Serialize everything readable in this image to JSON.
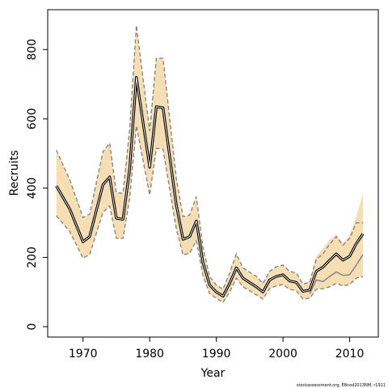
{
  "chart_data": {
    "type": "line",
    "xlabel": "Year",
    "ylabel": "Recruits",
    "footnote": "stockassessment.org, EBcod2013NM, r1911",
    "xlim": [
      1964.7,
      2014.3
    ],
    "ylim": [
      -30,
      915
    ],
    "x_ticks": [
      1970,
      1980,
      1990,
      2000,
      2010
    ],
    "y_ticks": [
      0,
      200,
      400,
      600,
      800
    ],
    "grid": false,
    "legend": "none",
    "colors": {
      "band_fill": "#f5deb3",
      "estimate": "#000000",
      "band_bounds": "#808080",
      "alt_estimate": "#808080"
    },
    "series": [
      {
        "role": "estimate",
        "x": [
          1966,
          1968,
          1970,
          1971,
          1973,
          1974,
          1975,
          1976,
          1977,
          1978,
          1980,
          1981,
          1982,
          1984,
          1985,
          1986,
          1987,
          1988,
          1989,
          1990,
          1991,
          1992,
          1993,
          1994,
          1996,
          1997,
          1998,
          1999,
          2000,
          2001,
          2002,
          2003,
          2004,
          2005,
          2006,
          2007,
          2008,
          2009,
          2010,
          2011,
          2012
        ],
        "y": [
          406,
          340,
          245,
          260,
          410,
          432,
          313,
          310,
          455,
          720,
          460,
          635,
          632,
          352,
          252,
          260,
          305,
          185,
          120,
          100,
          88,
          125,
          170,
          140,
          115,
          100,
          135,
          145,
          150,
          132,
          128,
          102,
          106,
          160,
          172,
          192,
          210,
          192,
          203,
          240,
          268
        ]
      },
      {
        "role": "upper-bound",
        "x": [
          1966,
          1968,
          1970,
          1971,
          1973,
          1974,
          1975,
          1976,
          1977,
          1978,
          1980,
          1981,
          1982,
          1984,
          1985,
          1986,
          1987,
          1988,
          1989,
          1990,
          1991,
          1992,
          1993,
          1994,
          1996,
          1997,
          1998,
          1999,
          2000,
          2001,
          2002,
          2003,
          2004,
          2005,
          2006,
          2007,
          2008,
          2009,
          2010,
          2011,
          2012
        ],
        "y": [
          510,
          425,
          315,
          325,
          505,
          530,
          387,
          385,
          570,
          870,
          565,
          775,
          775,
          428,
          318,
          322,
          375,
          228,
          145,
          120,
          108,
          155,
          210,
          170,
          145,
          125,
          160,
          173,
          178,
          160,
          155,
          123,
          128,
          195,
          210,
          238,
          260,
          235,
          255,
          300,
          300
        ]
      },
      {
        "role": "lower-bound",
        "x": [
          1966,
          1968,
          1970,
          1971,
          1973,
          1974,
          1975,
          1976,
          1977,
          1978,
          1980,
          1981,
          1982,
          1984,
          1985,
          1986,
          1987,
          1988,
          1989,
          1990,
          1991,
          1992,
          1993,
          1994,
          1996,
          1997,
          1998,
          1999,
          2000,
          2001,
          2002,
          2003,
          2004,
          2005,
          2006,
          2007,
          2008,
          2009,
          2010,
          2011,
          2012
        ],
        "y": [
          320,
          275,
          198,
          208,
          330,
          348,
          255,
          255,
          370,
          580,
          380,
          515,
          512,
          283,
          207,
          212,
          248,
          148,
          95,
          82,
          70,
          100,
          140,
          115,
          92,
          80,
          110,
          118,
          122,
          108,
          104,
          80,
          82,
          108,
          110,
          115,
          125,
          118,
          122,
          140,
          145
        ]
      },
      {
        "role": "alt-estimate",
        "x": [
          2004,
          2005,
          2006,
          2007,
          2008,
          2009,
          2010,
          2011,
          2012
        ],
        "y": [
          95,
          135,
          130,
          145,
          158,
          148,
          150,
          178,
          208
        ]
      },
      {
        "role": "band-upper",
        "x": [
          2004,
          2005,
          2006,
          2007,
          2008,
          2009,
          2010,
          2011,
          2012
        ],
        "y": [
          132,
          205,
          225,
          252,
          265,
          240,
          265,
          318,
          385
        ]
      }
    ]
  }
}
